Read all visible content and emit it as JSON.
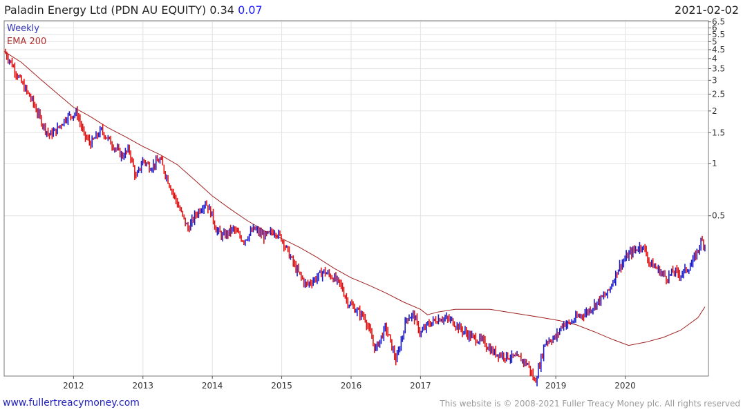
{
  "header": {
    "title": "Paladin Energy Ltd (PDN AU EQUITY) 0.34",
    "change": "0.07",
    "date": "2021-02-02"
  },
  "footer": {
    "site": "www.fullertreacymoney.com",
    "copyright": "This website is © 2008-2021 Fuller Treacy Money plc. All rights reserved"
  },
  "chart_data": {
    "type": "line",
    "scale": "log",
    "legend": [
      "Weekly",
      "EMA 200"
    ],
    "legend_position": "top-left",
    "grid": true,
    "ylim": [
      0.06,
      6.6
    ],
    "y_ticks": [
      "6.5",
      "6",
      "5.5",
      "5",
      "4.5",
      "4",
      "3.5",
      "3",
      "2.5",
      "2",
      "1.5",
      "1",
      "0.5"
    ],
    "x_ticks": [
      "2012",
      "2013",
      "2014",
      "2015",
      "2016",
      "2017",
      "2019",
      "2020"
    ],
    "series_colors": {
      "up": "#1a1acc",
      "down": "#e01010",
      "ema": "#a02020"
    },
    "series": [
      {
        "name": "Weekly",
        "x": [
          2011.0,
          2011.1,
          2011.25,
          2011.4,
          2011.55,
          2011.65,
          2011.75,
          2011.9,
          2012.05,
          2012.15,
          2012.25,
          2012.4,
          2012.55,
          2012.7,
          2012.8,
          2012.9,
          2013.0,
          2013.1,
          2013.25,
          2013.3,
          2013.45,
          2013.55,
          2013.65,
          2013.75,
          2013.9,
          2014.0,
          2014.05,
          2014.15,
          2014.3,
          2014.45,
          2014.6,
          2014.75,
          2014.9,
          2015.0,
          2015.2,
          2015.35,
          2015.5,
          2015.6,
          2015.75,
          2015.85,
          2015.95,
          2016.1,
          2016.2,
          2016.35,
          2016.5,
          2016.65,
          2016.8,
          2016.9,
          2017.0,
          2017.1,
          2017.2,
          2017.3,
          2017.45,
          2017.6,
          2017.75,
          2017.9,
          2018.05,
          2018.25,
          2018.45,
          2018.55,
          2018.65,
          2018.8,
          2018.95,
          2019.05,
          2019.15,
          2019.25,
          2019.4,
          2019.55,
          2019.7,
          2019.85,
          2020.0,
          2020.1,
          2020.2,
          2020.3,
          2020.4,
          2020.55,
          2020.65,
          2020.75,
          2020.9,
          2020.97,
          2021.05,
          2021.1
        ],
        "values": [
          4.4,
          3.8,
          2.9,
          2.3,
          1.7,
          1.45,
          1.55,
          1.85,
          1.95,
          1.45,
          1.3,
          1.55,
          1.3,
          1.1,
          1.2,
          0.82,
          1.05,
          0.95,
          1.05,
          0.92,
          0.65,
          0.52,
          0.42,
          0.5,
          0.6,
          0.5,
          0.42,
          0.38,
          0.42,
          0.36,
          0.42,
          0.38,
          0.41,
          0.37,
          0.25,
          0.2,
          0.22,
          0.24,
          0.22,
          0.2,
          0.16,
          0.14,
          0.13,
          0.085,
          0.115,
          0.073,
          0.13,
          0.135,
          0.105,
          0.118,
          0.125,
          0.13,
          0.125,
          0.11,
          0.1,
          0.095,
          0.082,
          0.078,
          0.075,
          0.07,
          0.055,
          0.095,
          0.1,
          0.12,
          0.12,
          0.13,
          0.14,
          0.16,
          0.18,
          0.25,
          0.3,
          0.32,
          0.34,
          0.27,
          0.25,
          0.22,
          0.24,
          0.23,
          0.26,
          0.3,
          0.36,
          0.34
        ]
      },
      {
        "name": "EMA 200",
        "x": [
          2011.0,
          2011.25,
          2011.5,
          2011.75,
          2012.0,
          2012.25,
          2012.5,
          2012.75,
          2013.0,
          2013.25,
          2013.5,
          2013.75,
          2014.0,
          2014.25,
          2014.5,
          2014.75,
          2015.0,
          2015.25,
          2015.5,
          2015.75,
          2016.0,
          2016.25,
          2016.5,
          2016.75,
          2017.0,
          2017.1,
          2017.25,
          2017.5,
          2017.75,
          2018.0,
          2018.25,
          2018.5,
          2018.75,
          2019.0,
          2019.25,
          2019.5,
          2019.75,
          2020.0,
          2020.25,
          2020.5,
          2020.75,
          2021.0,
          2021.1
        ],
        "values": [
          4.4,
          3.8,
          3.1,
          2.55,
          2.1,
          1.85,
          1.6,
          1.42,
          1.25,
          1.12,
          0.98,
          0.8,
          0.65,
          0.55,
          0.47,
          0.41,
          0.37,
          0.33,
          0.29,
          0.25,
          0.22,
          0.2,
          0.18,
          0.16,
          0.145,
          0.135,
          0.14,
          0.145,
          0.145,
          0.145,
          0.14,
          0.135,
          0.13,
          0.125,
          0.118,
          0.108,
          0.098,
          0.09,
          0.094,
          0.1,
          0.11,
          0.13,
          0.15
        ]
      }
    ]
  }
}
